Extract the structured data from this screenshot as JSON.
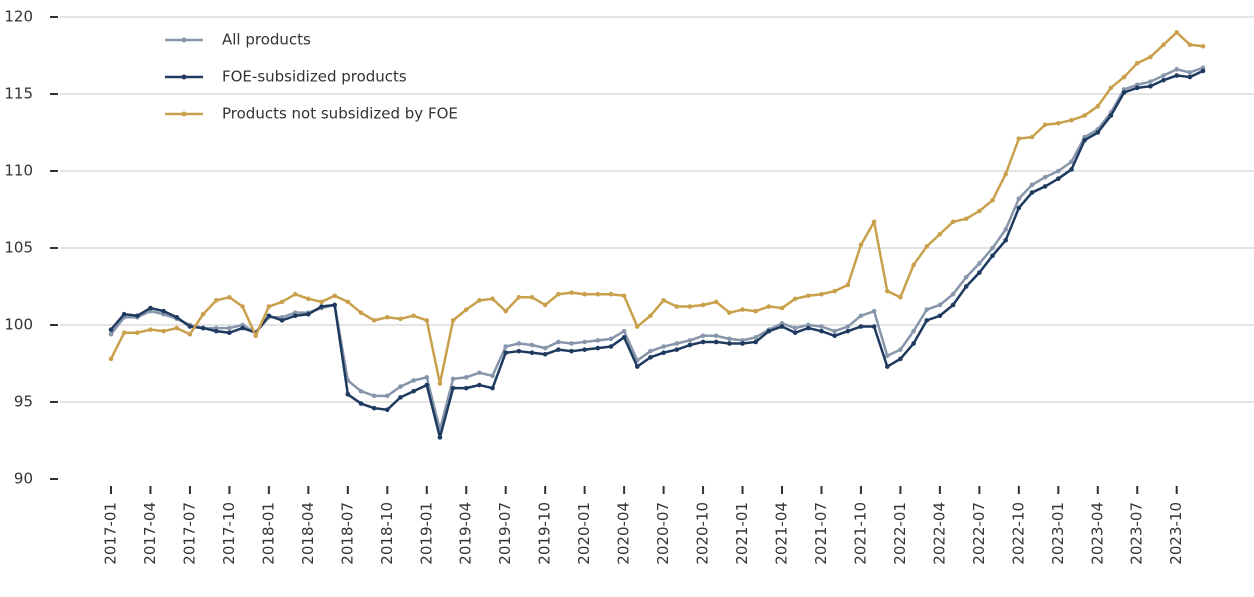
{
  "chart_data": {
    "type": "line",
    "categories": [
      "2017-01",
      null,
      null,
      "2017-04",
      null,
      null,
      "2017-07",
      null,
      null,
      "2017-10",
      null,
      null,
      "2018-01",
      null,
      null,
      "2018-04",
      null,
      null,
      "2018-07",
      null,
      null,
      "2018-10",
      null,
      null,
      "2019-01",
      null,
      null,
      "2019-04",
      null,
      null,
      "2019-07",
      null,
      null,
      "2019-10",
      null,
      null,
      "2020-01",
      null,
      null,
      "2020-04",
      null,
      null,
      "2020-07",
      null,
      null,
      "2020-10",
      null,
      null,
      "2021-01",
      null,
      null,
      "2021-04",
      null,
      null,
      "2021-07",
      null,
      null,
      "2021-10",
      null,
      null,
      "2022-01",
      null,
      null,
      "2022-04",
      null,
      null,
      "2022-07",
      null,
      null,
      "2022-10",
      null,
      null,
      "2023-01",
      null,
      null,
      "2023-04",
      null,
      null,
      "2023-07",
      null,
      null,
      "2023-10",
      null,
      null
    ],
    "series": [
      {
        "name": "All products",
        "color": "#8796ab",
        "values": [
          99.4,
          100.5,
          100.5,
          100.9,
          100.7,
          100.4,
          100.0,
          99.8,
          99.8,
          99.8,
          100.0,
          99.5,
          100.5,
          100.5,
          100.8,
          100.8,
          101.1,
          101.3,
          96.4,
          95.7,
          95.4,
          95.4,
          96.0,
          96.4,
          96.6,
          93.2,
          96.5,
          96.6,
          96.9,
          96.7,
          98.6,
          98.8,
          98.7,
          98.5,
          98.9,
          98.8,
          98.9,
          99.0,
          99.1,
          99.6,
          97.7,
          98.3,
          98.6,
          98.8,
          99.0,
          99.3,
          99.3,
          99.1,
          99.0,
          99.2,
          99.7,
          100.1,
          99.8,
          100.0,
          99.9,
          99.6,
          99.9,
          100.6,
          100.9,
          98.0,
          98.4,
          99.6,
          101.0,
          101.3,
          102.0,
          103.1,
          104.0,
          105.0,
          106.2,
          108.2,
          109.1,
          109.6,
          110.0,
          110.6,
          112.2,
          112.7,
          113.8,
          115.3,
          115.6,
          115.8,
          116.2,
          116.6,
          116.4,
          116.7
        ]
      },
      {
        "name": "FOE-subsidized products",
        "color": "#1e3a5f",
        "values": [
          99.7,
          100.7,
          100.6,
          101.1,
          100.9,
          100.5,
          99.9,
          99.8,
          99.6,
          99.5,
          99.8,
          99.5,
          100.6,
          100.3,
          100.6,
          100.7,
          101.2,
          101.3,
          95.5,
          94.9,
          94.6,
          94.5,
          95.3,
          95.7,
          96.1,
          92.7,
          95.9,
          95.9,
          96.1,
          95.9,
          98.2,
          98.3,
          98.2,
          98.1,
          98.4,
          98.3,
          98.4,
          98.5,
          98.6,
          99.2,
          97.3,
          97.9,
          98.2,
          98.4,
          98.7,
          98.9,
          98.9,
          98.8,
          98.8,
          98.9,
          99.6,
          99.9,
          99.5,
          99.8,
          99.6,
          99.3,
          99.6,
          99.9,
          99.9,
          97.3,
          97.8,
          98.8,
          100.3,
          100.6,
          101.3,
          102.5,
          103.4,
          104.5,
          105.5,
          107.6,
          108.6,
          109.0,
          109.5,
          110.1,
          112.0,
          112.5,
          113.6,
          115.1,
          115.4,
          115.5,
          115.9,
          116.2,
          116.1,
          116.5
        ]
      },
      {
        "name": "Products not subsidized by FOE",
        "color": "#c9a04c",
        "values": [
          97.8,
          99.5,
          99.5,
          99.7,
          99.6,
          99.8,
          99.4,
          100.7,
          101.6,
          101.8,
          101.2,
          99.3,
          101.2,
          101.5,
          102.0,
          101.7,
          101.5,
          101.9,
          101.5,
          100.8,
          100.3,
          100.5,
          100.4,
          100.6,
          100.3,
          96.2,
          100.3,
          101.0,
          101.6,
          101.7,
          100.9,
          101.8,
          101.8,
          101.3,
          102.0,
          102.1,
          102.0,
          102.0,
          102.0,
          101.9,
          99.9,
          100.6,
          101.6,
          101.2,
          101.2,
          101.3,
          101.5,
          100.8,
          101.0,
          100.9,
          101.2,
          101.1,
          101.7,
          101.9,
          102.0,
          102.2,
          102.6,
          105.2,
          106.7,
          102.2,
          101.8,
          103.9,
          105.1,
          105.9,
          106.7,
          106.9,
          107.4,
          108.1,
          109.8,
          112.1,
          112.2,
          113.0,
          113.1,
          113.3,
          113.6,
          114.2,
          115.4,
          116.1,
          117.0,
          117.4,
          118.2,
          119.0,
          118.2,
          118.1
        ]
      }
    ],
    "ylim": [
      90,
      120
    ],
    "yticks": [
      90,
      95,
      100,
      105,
      110,
      115,
      120
    ],
    "grid": true,
    "legend": "upper left"
  }
}
